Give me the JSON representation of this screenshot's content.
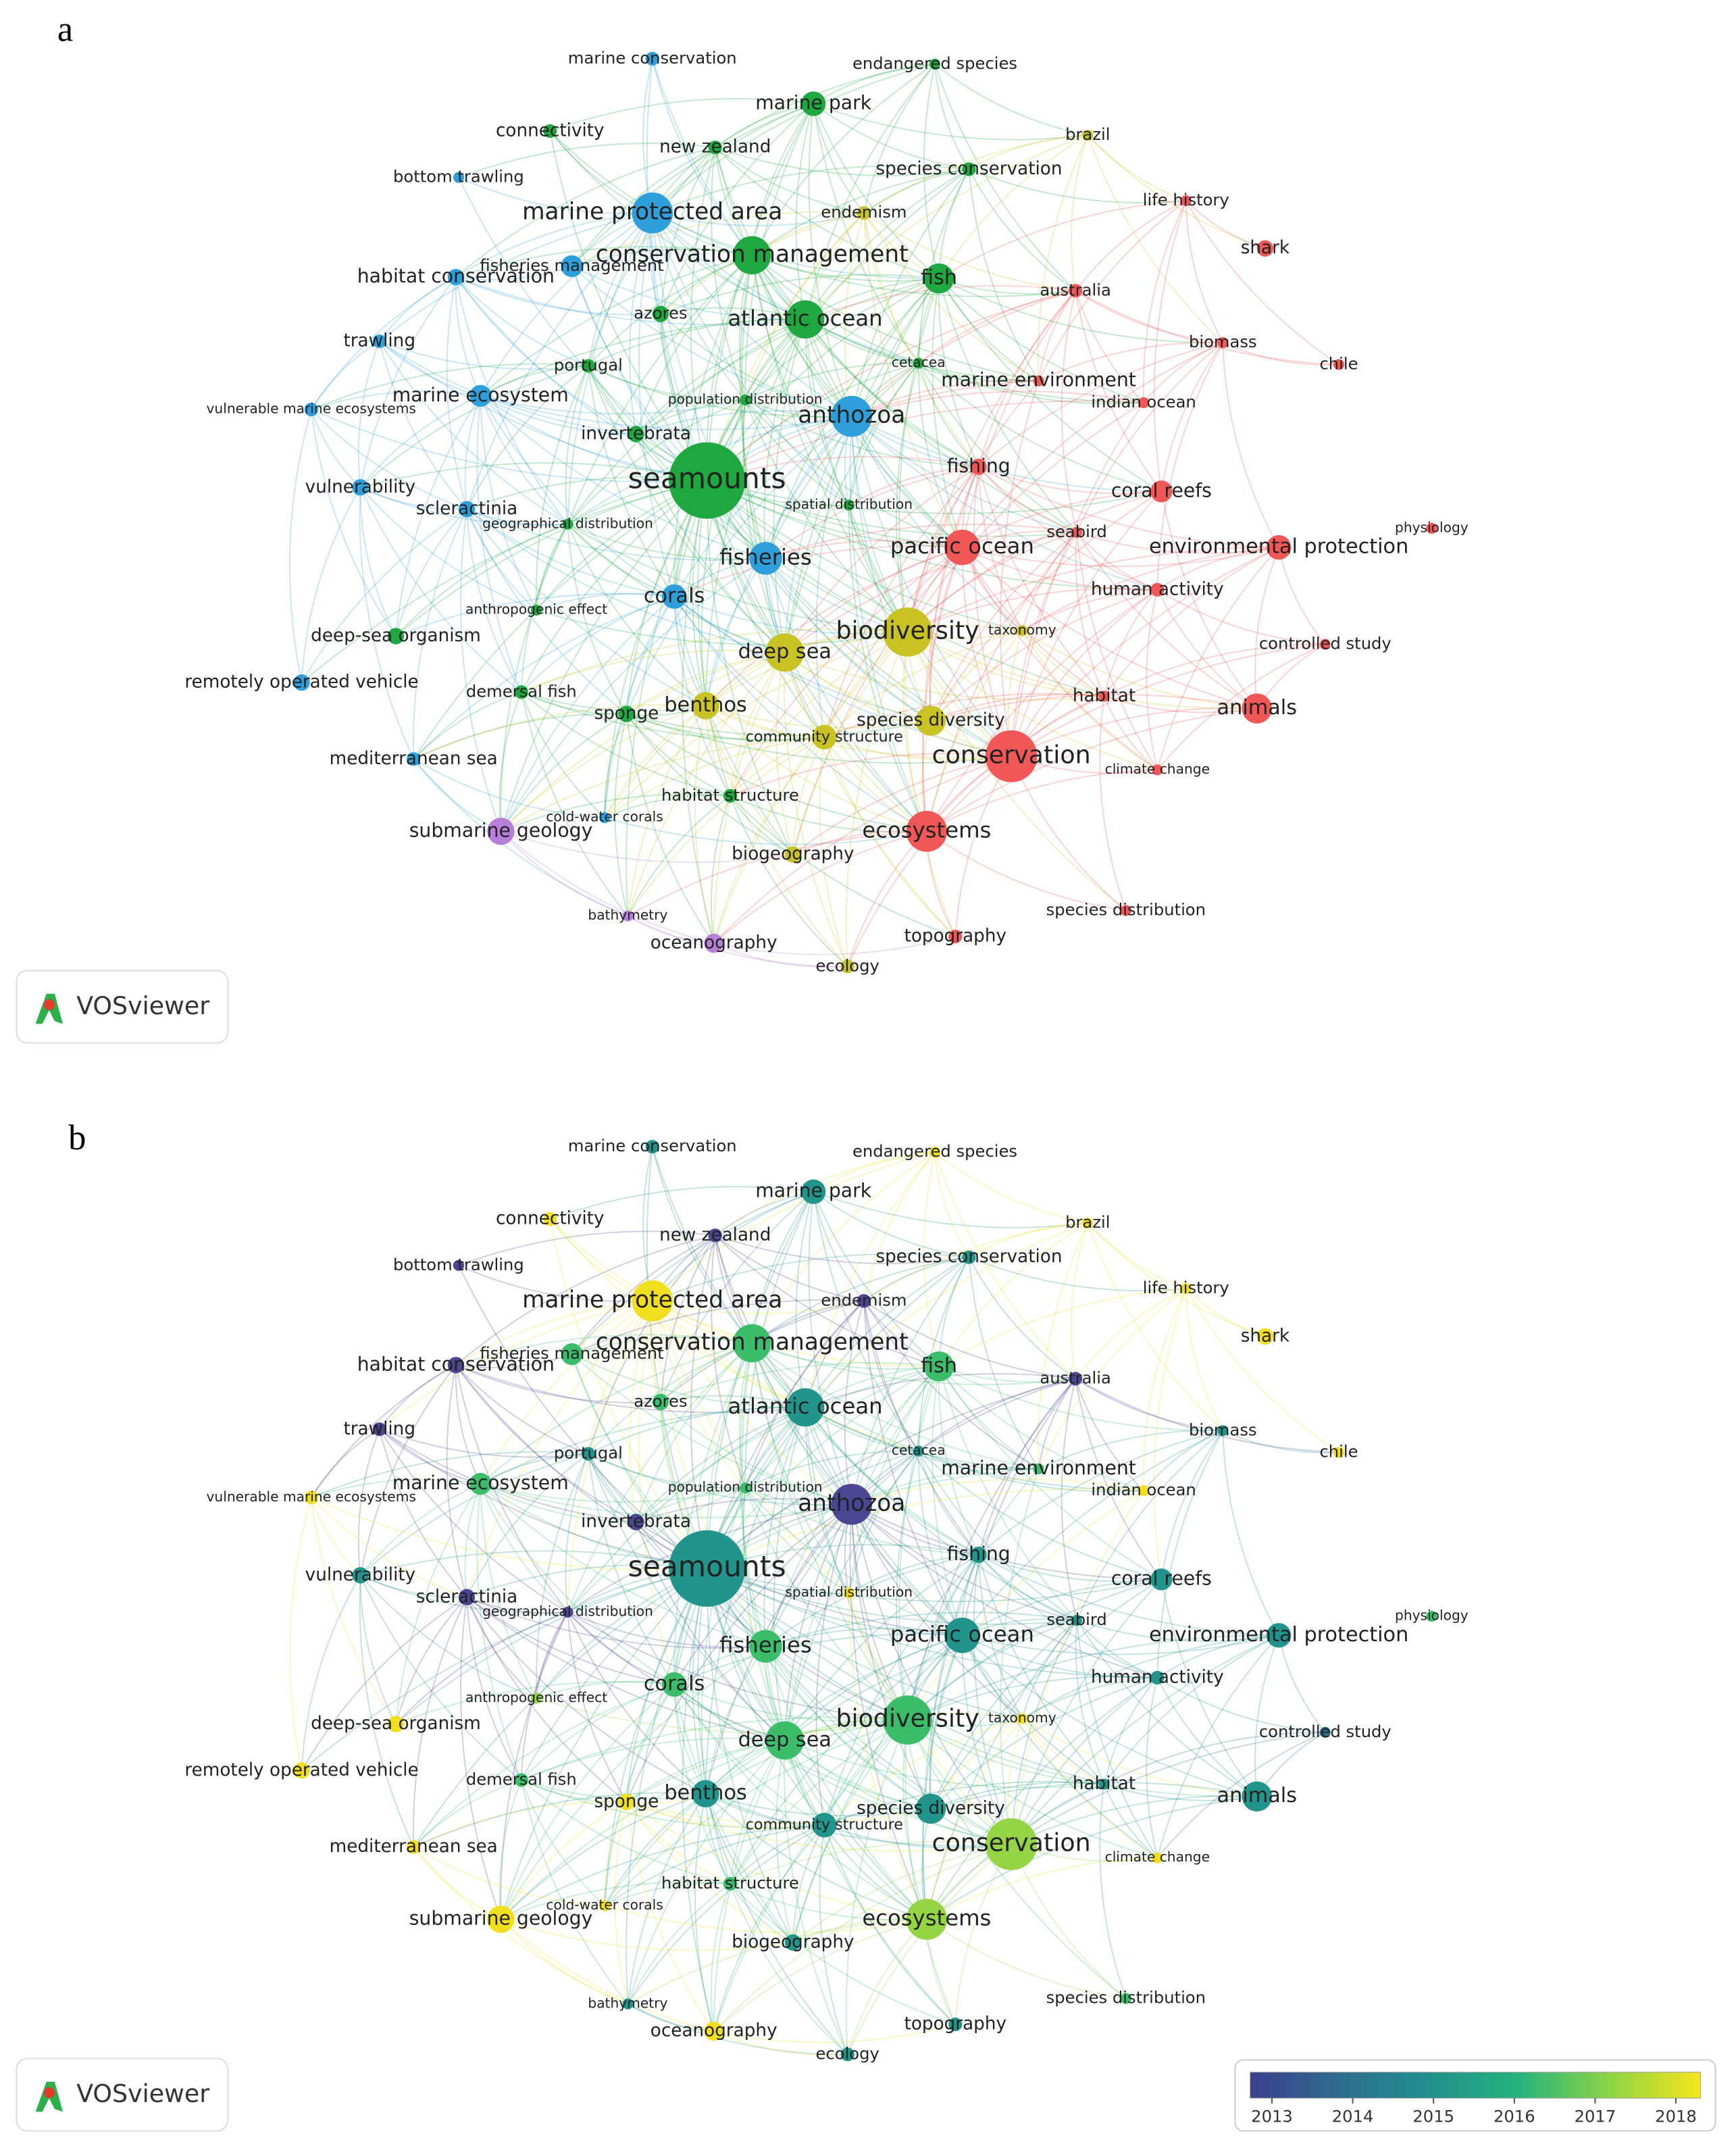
{
  "panels": [
    {
      "label": "a"
    },
    {
      "label": "b"
    }
  ],
  "logo": "VOSviewer",
  "nodes": [
    {
      "label": "marine conservation"
    },
    {
      "label": "endangered species"
    },
    {
      "label": "marine park"
    },
    {
      "label": "connectivity"
    },
    {
      "label": "brazil"
    },
    {
      "label": "new zealand"
    },
    {
      "label": "bottom trawling"
    },
    {
      "label": "species conservation"
    },
    {
      "label": "life history"
    },
    {
      "label": "marine protected area"
    },
    {
      "label": "endemism"
    },
    {
      "label": "conservation management"
    },
    {
      "label": "shark"
    },
    {
      "label": "fish"
    },
    {
      "label": "habitat conservation"
    },
    {
      "label": "fisheries management"
    },
    {
      "label": "australia"
    },
    {
      "label": "atlantic ocean"
    },
    {
      "label": "azores"
    },
    {
      "label": "trawling"
    },
    {
      "label": "biomass"
    },
    {
      "label": "chile"
    },
    {
      "label": "portugal"
    },
    {
      "label": "cetacea"
    },
    {
      "label": "marine environment"
    },
    {
      "label": "marine ecosystem"
    },
    {
      "label": "population distribution"
    },
    {
      "label": "indian ocean"
    },
    {
      "label": "vulnerable marine ecosystems"
    },
    {
      "label": "anthozoa"
    },
    {
      "label": "invertebrata"
    },
    {
      "label": "fishing"
    },
    {
      "label": "seamounts"
    },
    {
      "label": "coral reefs"
    },
    {
      "label": "vulnerability"
    },
    {
      "label": "scleractinia"
    },
    {
      "label": "spatial distribution"
    },
    {
      "label": "geographical distribution"
    },
    {
      "label": "seabird"
    },
    {
      "label": "physiology"
    },
    {
      "label": "pacific ocean"
    },
    {
      "label": "environmental protection"
    },
    {
      "label": "fisheries"
    },
    {
      "label": "corals"
    },
    {
      "label": "human activity"
    },
    {
      "label": "anthropogenic effect"
    },
    {
      "label": "biodiversity"
    },
    {
      "label": "taxonomy"
    },
    {
      "label": "deep-sea organism"
    },
    {
      "label": "deep sea"
    },
    {
      "label": "controlled study"
    },
    {
      "label": "remotely operated vehicle"
    },
    {
      "label": "demersal fish"
    },
    {
      "label": "habitat"
    },
    {
      "label": "animals"
    },
    {
      "label": "sponge"
    },
    {
      "label": "benthos"
    },
    {
      "label": "species diversity"
    },
    {
      "label": "community structure"
    },
    {
      "label": "conservation"
    },
    {
      "label": "climate change"
    },
    {
      "label": "mediterranean sea"
    },
    {
      "label": "habitat structure"
    },
    {
      "label": "cold-water corals"
    },
    {
      "label": "submarine geology"
    },
    {
      "label": "ecosystems"
    },
    {
      "label": "biogeography"
    },
    {
      "label": "bathymetry"
    },
    {
      "label": "oceanography"
    },
    {
      "label": "topography"
    },
    {
      "label": "species distribution"
    },
    {
      "label": "ecology"
    }
  ],
  "colorbar": {
    "ticks": [
      "2013",
      "2014",
      "2015",
      "2016",
      "2017",
      "2018"
    ]
  }
}
